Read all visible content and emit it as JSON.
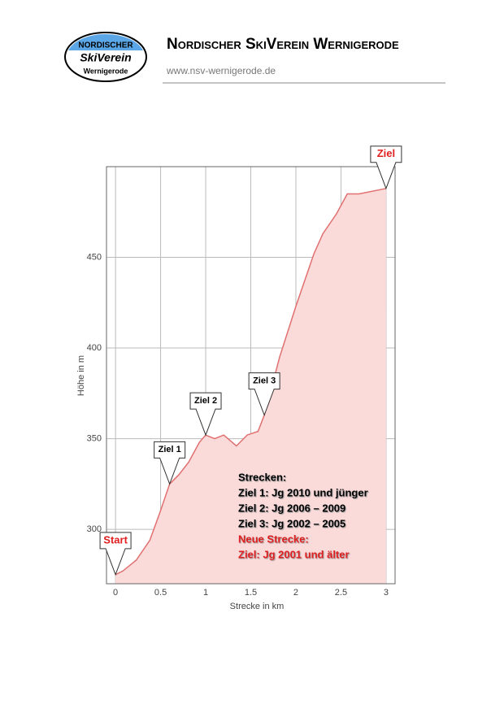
{
  "header": {
    "logo": {
      "lines": [
        "NORDISCHER",
        "SkiVerein",
        "Wernigerode"
      ]
    },
    "title": "Nordischer SkiVerein Wernigerode",
    "url": "www.nsv-wernigerode.de"
  },
  "chart_data": {
    "type": "area",
    "x_label": "Strecke in km",
    "y_label": "Höhe in m",
    "x": [
      0,
      0.08,
      0.23,
      0.38,
      0.49,
      0.6,
      0.7,
      0.81,
      0.93,
      1.0,
      1.1,
      1.2,
      1.34,
      1.46,
      1.58,
      1.65,
      1.82,
      2.0,
      2.2,
      2.3,
      2.45,
      2.57,
      2.7,
      3.0
    ],
    "values": [
      275,
      277,
      283,
      294,
      309,
      325,
      330,
      337,
      348,
      352,
      350,
      352,
      346,
      352,
      354,
      363,
      395,
      423,
      452,
      463,
      474,
      485,
      485,
      488
    ],
    "color": "#e07070",
    "fill": "#fbdada",
    "xlim": [
      -0.1,
      3.1
    ],
    "xticks": [
      0,
      0.5,
      1,
      1.5,
      2,
      2.5,
      3
    ],
    "ylim": [
      270,
      500
    ],
    "yticks": [
      300,
      350,
      400,
      450
    ],
    "grid": true,
    "annotations": [
      {
        "text": "Start",
        "x": 0,
        "y": 275,
        "color": "#e02020"
      },
      {
        "text": "Ziel 1",
        "x": 0.6,
        "y": 325,
        "color": "#000000"
      },
      {
        "text": "Ziel 2",
        "x": 1.0,
        "y": 352,
        "color": "#000000"
      },
      {
        "text": "Ziel 3",
        "x": 1.65,
        "y": 363,
        "color": "#000000"
      },
      {
        "text": "Ziel",
        "x": 3.0,
        "y": 488,
        "color": "#e02020"
      }
    ],
    "legend": [
      {
        "text": "Strecken:",
        "color": "#000000"
      },
      {
        "text": "Ziel 1: Jg 2010 und jünger",
        "color": "#000000"
      },
      {
        "text": "Ziel 2: Jg 2006 – 2009",
        "color": "#000000"
      },
      {
        "text": "Ziel 3: Jg 2002 – 2005",
        "color": "#000000"
      },
      {
        "text": "Neue Strecke:",
        "color": "#e02020"
      },
      {
        "text": "Ziel: Jg 2001 und älter",
        "color": "#e02020"
      }
    ]
  }
}
